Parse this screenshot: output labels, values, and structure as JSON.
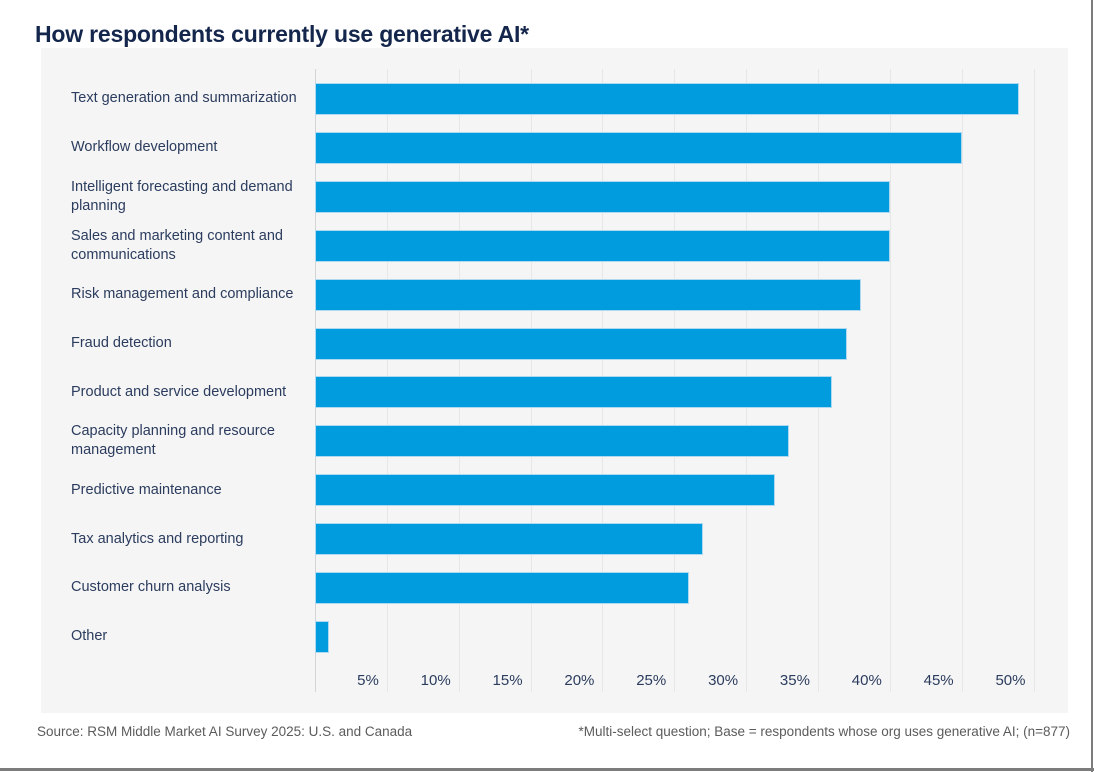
{
  "page": {
    "title": "How respondents currently use generative AI*",
    "source_note": "Source: RSM Middle Market AI Survey 2025: U.S. and Canada",
    "footnote": "*Multi-select question; Base = respondents whose org uses generative AI; (n=877)"
  },
  "colors": {
    "bar": "#009cde",
    "title_text": "#14264c",
    "label_text": "#2b3c5e",
    "panel_bg": "#f5f5f5",
    "gridline": "#e7e7e7",
    "axis_line": "#d4d4d4",
    "footer_text": "#5b5b5b",
    "page_border": "#7c7c7c"
  },
  "chart_data": {
    "type": "bar",
    "orientation": "horizontal",
    "title": "How respondents currently use generative AI*",
    "categories": [
      "Text generation and summarization",
      "Workflow development",
      "Intelligent forecasting and demand planning",
      "Sales and marketing content and communications",
      "Risk management and compliance",
      "Fraud detection",
      "Product and service development",
      "Capacity planning and resource management",
      "Predictive maintenance",
      "Tax analytics and reporting",
      "Customer churn analysis",
      "Other"
    ],
    "values": [
      49,
      45,
      40,
      40,
      38,
      37,
      36,
      33,
      32,
      27,
      26,
      1
    ],
    "unit": "%",
    "xlabel": "",
    "ylabel": "",
    "x_tick_values": [
      5,
      10,
      15,
      20,
      25,
      30,
      35,
      40,
      45,
      50
    ],
    "x_tick_labels": [
      "5%",
      "10%",
      "15%",
      "20%",
      "25%",
      "30%",
      "35%",
      "40%",
      "45%",
      "50%"
    ],
    "xlim": [
      0,
      52.4
    ],
    "grid": true,
    "legend": false
  }
}
